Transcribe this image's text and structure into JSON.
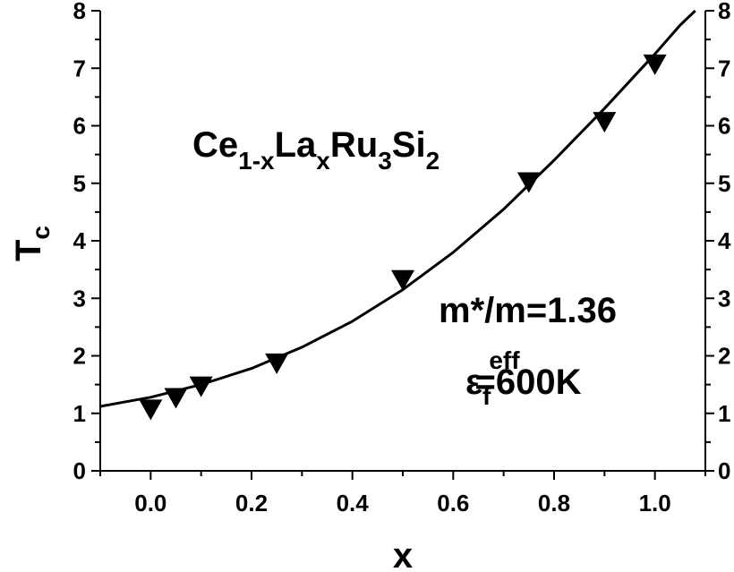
{
  "chart_data": {
    "type": "scatter",
    "xlabel": "x",
    "ylabel": {
      "main": "T",
      "sub": "c"
    },
    "xlim": [
      -0.1,
      1.1
    ],
    "ylim": [
      0,
      8
    ],
    "x_ticks": [
      "0.0",
      "0.2",
      "0.4",
      "0.6",
      "0.8",
      "1.0"
    ],
    "y_ticks": [
      "0",
      "1",
      "2",
      "3",
      "4",
      "5",
      "6",
      "7",
      "8"
    ],
    "y_ticks_right": [
      "0",
      "1",
      "2",
      "3",
      "4",
      "5",
      "6",
      "7",
      "8"
    ],
    "grid": false,
    "marker": "down-triangle",
    "series": [
      {
        "x": [
          0.0,
          0.05,
          0.1,
          0.25,
          0.5,
          0.75,
          0.9,
          1.0
        ],
        "y": [
          1.1,
          1.3,
          1.5,
          1.9,
          3.35,
          5.05,
          6.1,
          7.1
        ]
      }
    ],
    "fit_curve": {
      "x": [
        -0.1,
        0.0,
        0.1,
        0.2,
        0.3,
        0.4,
        0.5,
        0.6,
        0.7,
        0.8,
        0.9,
        1.0,
        1.05,
        1.08
      ],
      "y": [
        1.12,
        1.28,
        1.5,
        1.78,
        2.15,
        2.6,
        3.15,
        3.8,
        4.55,
        5.4,
        6.3,
        7.25,
        7.75,
        8.0
      ]
    },
    "annotations": {
      "compound": [
        {
          "text": "Ce",
          "sub": false
        },
        {
          "text": "1-x",
          "sub": true
        },
        {
          "text": "La",
          "sub": false
        },
        {
          "text": "x",
          "sub": true
        },
        {
          "text": "Ru",
          "sub": false
        },
        {
          "text": "3",
          "sub": true
        },
        {
          "text": "Si",
          "sub": false
        },
        {
          "text": "2",
          "sub": true
        }
      ],
      "mass_ratio": "m*/m=1.36",
      "fermi_energy": {
        "base": "ε",
        "sub": "f",
        "sup": "eff",
        "value": "=600K"
      }
    }
  }
}
